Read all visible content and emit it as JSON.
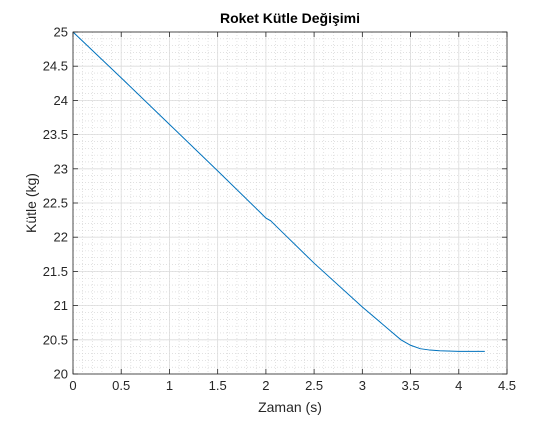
{
  "chart_data": {
    "type": "line",
    "title": "Roket Kütle Değişimi",
    "xlabel": "Zaman (s)",
    "ylabel": "Kütle (kg)",
    "xlim": [
      0,
      4.5
    ],
    "ylim": [
      20,
      25
    ],
    "x_ticks": [
      0,
      0.5,
      1,
      1.5,
      2,
      2.5,
      3,
      3.5,
      4,
      4.5
    ],
    "y_ticks": [
      20,
      20.5,
      21,
      21.5,
      22,
      22.5,
      23,
      23.5,
      24,
      24.5,
      25
    ],
    "x_tick_labels": [
      "0",
      "0.5",
      "1",
      "1.5",
      "2",
      "2.5",
      "3",
      "3.5",
      "4",
      "4.5"
    ],
    "y_tick_labels": [
      "20",
      "20.5",
      "21",
      "21.5",
      "22",
      "22.5",
      "23",
      "23.5",
      "24",
      "24.5",
      "25"
    ],
    "grid": true,
    "minor_grid": true,
    "box": true,
    "series": [
      {
        "color": "#0072BD",
        "x": [
          0,
          0.5,
          1.0,
          1.5,
          1.95,
          2.0,
          2.05,
          2.1,
          2.5,
          3.0,
          3.3,
          3.4,
          3.5,
          3.6,
          3.7,
          3.8,
          4.0,
          4.27
        ],
        "y": [
          25.0,
          24.33,
          23.65,
          22.97,
          22.35,
          22.28,
          22.24,
          22.17,
          21.62,
          20.98,
          20.62,
          20.5,
          20.42,
          20.37,
          20.35,
          20.34,
          20.33,
          20.33
        ]
      }
    ]
  }
}
